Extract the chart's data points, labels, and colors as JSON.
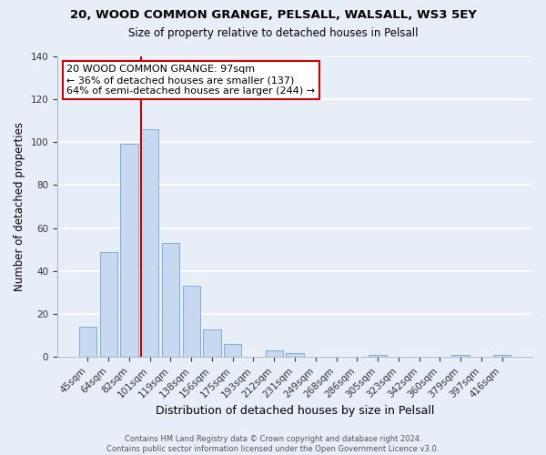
{
  "title": "20, WOOD COMMON GRANGE, PELSALL, WALSALL, WS3 5EY",
  "subtitle": "Size of property relative to detached houses in Pelsall",
  "xlabel": "Distribution of detached houses by size in Pelsall",
  "ylabel": "Number of detached properties",
  "bar_labels": [
    "45sqm",
    "64sqm",
    "82sqm",
    "101sqm",
    "119sqm",
    "138sqm",
    "156sqm",
    "175sqm",
    "193sqm",
    "212sqm",
    "231sqm",
    "249sqm",
    "268sqm",
    "286sqm",
    "305sqm",
    "323sqm",
    "342sqm",
    "360sqm",
    "379sqm",
    "397sqm",
    "416sqm"
  ],
  "bar_values": [
    14,
    49,
    99,
    106,
    53,
    33,
    13,
    6,
    0,
    3,
    2,
    0,
    0,
    0,
    1,
    0,
    0,
    0,
    1,
    0,
    1
  ],
  "bar_color": "#c6d9f1",
  "bar_edge_color": "#7bafd4",
  "annotation_line1": "20 WOOD COMMON GRANGE: 97sqm",
  "annotation_line2": "← 36% of detached houses are smaller (137)",
  "annotation_line3": "64% of semi-detached houses are larger (244) →",
  "annotation_box_facecolor": "#ffffff",
  "annotation_box_edgecolor": "#cc0000",
  "vline_color": "#cc0000",
  "vline_x_idx": 2.5,
  "ylim": [
    0,
    140
  ],
  "yticks": [
    0,
    20,
    40,
    60,
    80,
    100,
    120,
    140
  ],
  "footer1": "Contains HM Land Registry data © Crown copyright and database right 2024.",
  "footer2": "Contains public sector information licensed under the Open Government Licence v3.0.",
  "bg_color": "#e8eef8",
  "grid_color": "#c8d4e8"
}
